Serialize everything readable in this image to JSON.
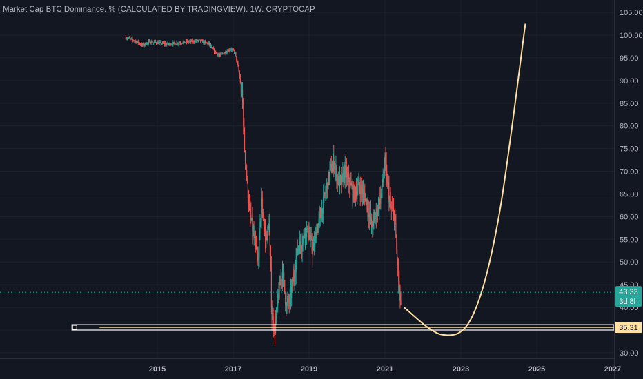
{
  "chart_data": {
    "type": "candlestick",
    "title": "Market Cap BTC Dominance, % (CALCULATED BY TRADINGVIEW), 1W, CRYPTOCAP",
    "y_axis": {
      "min": 30,
      "max": 105,
      "ticks": [
        "105.00",
        "100.00",
        "95.00",
        "90.00",
        "85.00",
        "80.00",
        "75.00",
        "70.00",
        "65.00",
        "60.00",
        "55.00",
        "50.00",
        "45.00",
        "40.00",
        "35.00",
        "30.00"
      ]
    },
    "x_axis": {
      "min": 2013.0,
      "max": 2027.0,
      "ticks": [
        {
          "value": 2015,
          "label": "2015"
        },
        {
          "value": 2017,
          "label": "2017"
        },
        {
          "value": 2019,
          "label": "2019"
        },
        {
          "value": 2021,
          "label": "2021"
        },
        {
          "value": 2023,
          "label": "2023"
        },
        {
          "value": 2025,
          "label": "2025"
        },
        {
          "value": 2027,
          "label": "2027"
        }
      ]
    },
    "price_series": [
      [
        2014.17,
        99.5
      ],
      [
        2014.4,
        98.8
      ],
      [
        2014.6,
        97.8
      ],
      [
        2014.8,
        98.5
      ],
      [
        2015.0,
        98.3
      ],
      [
        2015.3,
        98.0
      ],
      [
        2015.6,
        98.4
      ],
      [
        2015.9,
        98.6
      ],
      [
        2016.1,
        98.8
      ],
      [
        2016.35,
        98.1
      ],
      [
        2016.5,
        96.5
      ],
      [
        2016.65,
        95.5
      ],
      [
        2016.8,
        96.3
      ],
      [
        2016.95,
        97.0
      ],
      [
        2017.05,
        96.0
      ],
      [
        2017.15,
        92.0
      ],
      [
        2017.25,
        85.0
      ],
      [
        2017.3,
        75.0
      ],
      [
        2017.37,
        67.0
      ],
      [
        2017.45,
        60.0
      ],
      [
        2017.55,
        55.0
      ],
      [
        2017.65,
        50.0
      ],
      [
        2017.75,
        63.0
      ],
      [
        2017.85,
        55.0
      ],
      [
        2017.95,
        58.0
      ],
      [
        2018.02,
        38.0
      ],
      [
        2018.1,
        35.5
      ],
      [
        2018.2,
        43.0
      ],
      [
        2018.3,
        48.0
      ],
      [
        2018.4,
        40.0
      ],
      [
        2018.5,
        42.0
      ],
      [
        2018.6,
        47.0
      ],
      [
        2018.7,
        53.0
      ],
      [
        2018.8,
        54.0
      ],
      [
        2018.9,
        57.0
      ],
      [
        2019.0,
        56.0
      ],
      [
        2019.1,
        52.0
      ],
      [
        2019.2,
        57.0
      ],
      [
        2019.3,
        60.0
      ],
      [
        2019.45,
        66.0
      ],
      [
        2019.55,
        70.0
      ],
      [
        2019.65,
        72.0
      ],
      [
        2019.75,
        68.0
      ],
      [
        2019.85,
        67.5
      ],
      [
        2019.95,
        70.0
      ],
      [
        2020.05,
        68.0
      ],
      [
        2020.15,
        65.0
      ],
      [
        2020.25,
        66.0
      ],
      [
        2020.35,
        66.5
      ],
      [
        2020.45,
        65.0
      ],
      [
        2020.55,
        62.0
      ],
      [
        2020.65,
        58.0
      ],
      [
        2020.75,
        60.0
      ],
      [
        2020.85,
        63.0
      ],
      [
        2020.95,
        68.0
      ],
      [
        2021.0,
        72.0
      ],
      [
        2021.05,
        68.0
      ],
      [
        2021.15,
        62.0
      ],
      [
        2021.25,
        60.0
      ],
      [
        2021.32,
        51.0
      ],
      [
        2021.38,
        43.0
      ],
      [
        2021.42,
        40.5
      ]
    ],
    "projection_curve": {
      "color": "#ffe0a0",
      "points": [
        [
          2021.5,
          40.0
        ],
        [
          2022.5,
          34.0
        ],
        [
          2023.3,
          38.0
        ],
        [
          2024.0,
          60.0
        ],
        [
          2024.7,
          102.5
        ]
      ]
    },
    "support_zone": {
      "y_low": 35.0,
      "y_high": 36.2,
      "x_start": 2012.75,
      "label": "35.31",
      "color": "#ffe0a0"
    },
    "last_price": {
      "value": 43.33,
      "label": "43.33",
      "countdown": "3d 8h",
      "color": "#26a69a"
    },
    "up_color": "#26a69a",
    "down_color": "#ef5350"
  }
}
